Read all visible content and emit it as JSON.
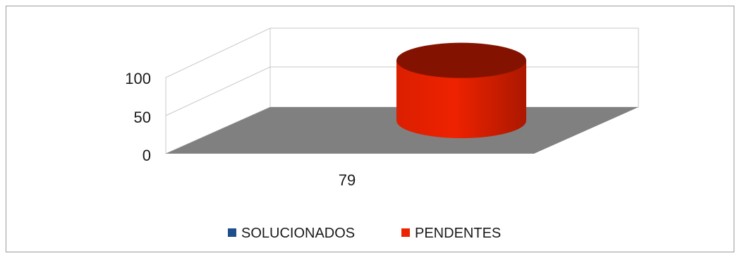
{
  "chart_data": {
    "type": "bar",
    "style": "3d-cylinder",
    "categories": [
      "79"
    ],
    "series": [
      {
        "name": "SOLUCIONADOS",
        "color": "#1f4e8c",
        "values": [
          0
        ]
      },
      {
        "name": "PENDENTES",
        "color": "#ee2200",
        "values": [
          79
        ]
      }
    ],
    "ylim": [
      0,
      100
    ],
    "yticks": [
      "0",
      "50",
      "100"
    ],
    "title": "",
    "xlabel": "",
    "ylabel": "",
    "grid": true,
    "legend": "bottom",
    "floor_color": "#808080"
  }
}
